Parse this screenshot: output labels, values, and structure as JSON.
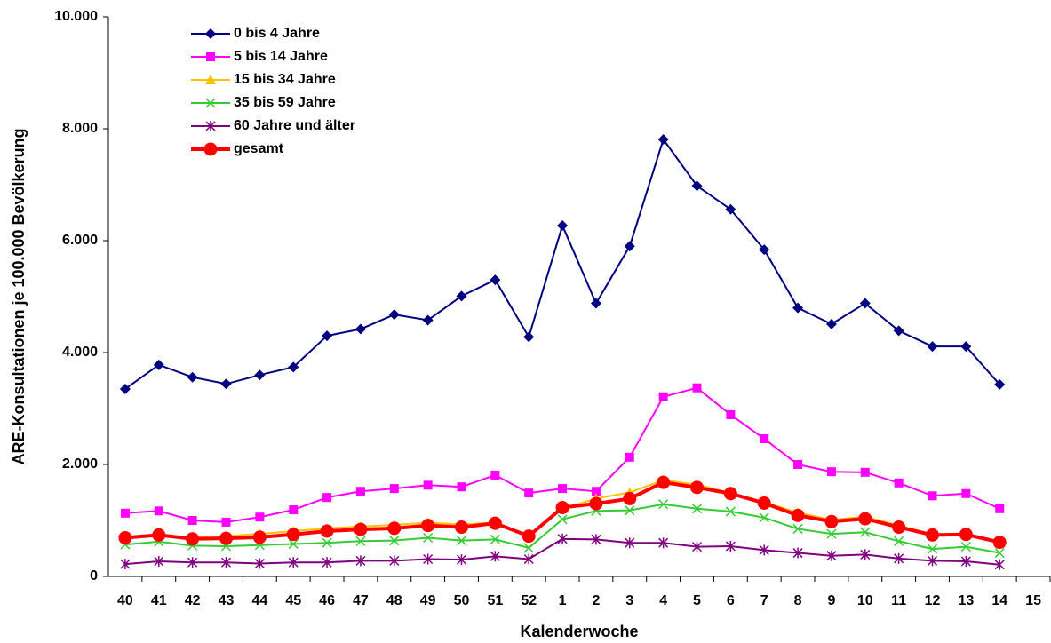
{
  "chart_data": {
    "type": "line",
    "x_label": "Kalenderwoche",
    "y_label": "ARE-Konsultationen je 100.000 Bevölkerung",
    "categories": [
      "40",
      "41",
      "42",
      "43",
      "44",
      "45",
      "46",
      "47",
      "48",
      "49",
      "50",
      "51",
      "52",
      "1",
      "2",
      "3",
      "4",
      "5",
      "6",
      "7",
      "8",
      "9",
      "10",
      "11",
      "12",
      "13",
      "14",
      "15"
    ],
    "ylim": [
      0,
      10000
    ],
    "yticks": [
      0,
      {
        "value": 2000,
        "label": "2.000"
      },
      {
        "value": 4000,
        "label": "4.000"
      },
      {
        "value": 6000,
        "label": "6.000"
      },
      {
        "value": 8000,
        "label": "8.000"
      },
      {
        "value": 10000,
        "label": "10.000"
      }
    ],
    "grid": false,
    "legend": "upper left",
    "series": [
      {
        "name": "0 bis 4 Jahre",
        "color": "#000080",
        "marker": "diamond",
        "values": [
          3350,
          3780,
          3560,
          3440,
          3600,
          3740,
          4300,
          4420,
          4680,
          4580,
          5010,
          5300,
          4280,
          6270,
          4880,
          5900,
          7810,
          6980,
          6560,
          5840,
          4800,
          4510,
          4880,
          4390,
          4110,
          4110,
          3430,
          null
        ]
      },
      {
        "name": "5 bis 14 Jahre",
        "color": "#ff00ff",
        "marker": "square",
        "values": [
          1130,
          1170,
          1000,
          970,
          1060,
          1190,
          1410,
          1520,
          1570,
          1630,
          1600,
          1810,
          1490,
          1570,
          1520,
          2130,
          3210,
          3370,
          2890,
          2460,
          2000,
          1870,
          1860,
          1670,
          1440,
          1480,
          1210,
          null
        ]
      },
      {
        "name": "15 bis 34 Jahre",
        "color": "#ffc000",
        "marker": "triangle",
        "values": [
          690,
          740,
          700,
          720,
          760,
          810,
          860,
          890,
          920,
          960,
          930,
          960,
          720,
          1210,
          1390,
          1500,
          1720,
          1640,
          1490,
          1330,
          1140,
          1010,
          1070,
          910,
          750,
          760,
          600,
          null
        ]
      },
      {
        "name": "35 bis 59 Jahre",
        "color": "#33cc33",
        "marker": "x",
        "values": [
          570,
          620,
          550,
          540,
          560,
          580,
          600,
          630,
          640,
          690,
          640,
          660,
          510,
          1020,
          1170,
          1180,
          1290,
          1210,
          1160,
          1050,
          850,
          760,
          790,
          630,
          490,
          530,
          420,
          null
        ]
      },
      {
        "name": "60 Jahre und älter",
        "color": "#800080",
        "marker": "star",
        "values": [
          220,
          270,
          250,
          250,
          230,
          250,
          250,
          280,
          280,
          310,
          300,
          360,
          310,
          670,
          660,
          600,
          600,
          530,
          540,
          470,
          420,
          370,
          390,
          320,
          280,
          270,
          210,
          null
        ]
      },
      {
        "name": "gesamt",
        "color": "#ff0000",
        "marker": "circle",
        "values": [
          690,
          740,
          670,
          680,
          700,
          750,
          810,
          840,
          860,
          910,
          880,
          950,
          720,
          1230,
          1300,
          1390,
          1680,
          1590,
          1480,
          1310,
          1090,
          980,
          1030,
          880,
          740,
          750,
          610,
          null
        ]
      }
    ]
  }
}
